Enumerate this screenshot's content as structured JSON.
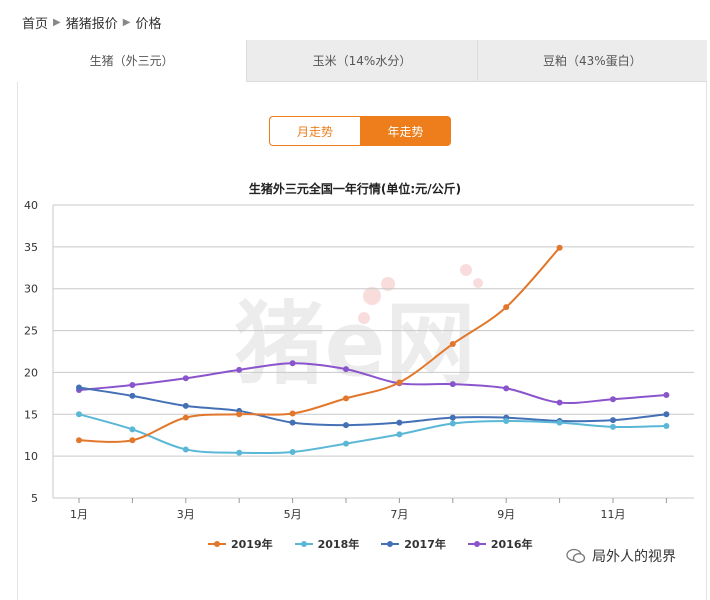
{
  "breadcrumb": {
    "home": "首页",
    "section": "猪猪报价",
    "current": "价格"
  },
  "tabs": [
    {
      "label": "生猪（外三元）",
      "active": true
    },
    {
      "label": "玉米（14%水分）",
      "active": false
    },
    {
      "label": "豆粕（43%蛋白）",
      "active": false
    }
  ],
  "toggle": {
    "month_label": "月走势",
    "year_label": "年走势",
    "selected": "year"
  },
  "watermark_text": "猪e网",
  "account_badge": "局外人的视界",
  "colors": {
    "accent": "#ee7d1b",
    "s2019": "#e2772b",
    "s2018": "#5ab8d6",
    "s2017": "#4470b5",
    "s2016": "#8a55cc"
  },
  "chart_data": {
    "type": "line",
    "title": "生猪外三元全国一年行情(单位:元/公斤)",
    "x": [
      1,
      2,
      3,
      4,
      5,
      6,
      7,
      8,
      9,
      10,
      11,
      12
    ],
    "x_tick_labels": [
      "1月",
      "3月",
      "5月",
      "7月",
      "9月",
      "11月"
    ],
    "x_tick_values": [
      1,
      3,
      5,
      7,
      9,
      11
    ],
    "ylim": [
      5,
      40
    ],
    "y_ticks": [
      5,
      10,
      15,
      20,
      25,
      30,
      35,
      40
    ],
    "grid": true,
    "legend_position": "bottom",
    "series": [
      {
        "name": "2019年",
        "values": [
          11.9,
          11.9,
          14.6,
          15.0,
          15.1,
          16.9,
          18.8,
          23.4,
          27.8,
          34.9,
          null,
          null
        ]
      },
      {
        "name": "2018年",
        "values": [
          15.0,
          13.2,
          10.8,
          10.4,
          10.5,
          11.5,
          12.6,
          13.9,
          14.2,
          14.0,
          13.5,
          13.6
        ]
      },
      {
        "name": "2017年",
        "values": [
          18.2,
          17.2,
          16.0,
          15.4,
          14.0,
          13.7,
          14.0,
          14.6,
          14.6,
          14.2,
          14.3,
          15.0
        ]
      },
      {
        "name": "2016年",
        "values": [
          17.9,
          18.5,
          19.3,
          20.3,
          21.1,
          20.4,
          18.7,
          18.6,
          18.1,
          16.4,
          16.8,
          17.3
        ]
      }
    ]
  }
}
